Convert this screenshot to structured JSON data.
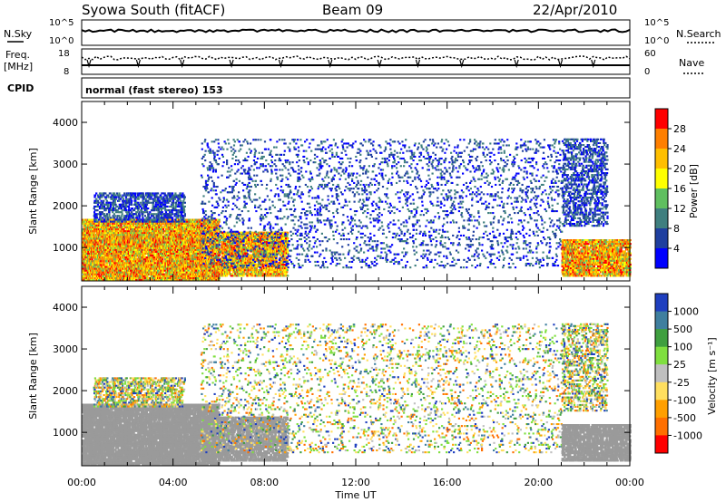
{
  "header": {
    "station": "Syowa South (fitACF)",
    "beam": "Beam 09",
    "date": "22/Apr/2010"
  },
  "nsky_panel": {
    "left_label": "N.Sky",
    "right_label": "N.Search",
    "left_ticks": [
      "10^5",
      "10^0"
    ],
    "right_ticks": [
      "10^5",
      "10^0"
    ]
  },
  "freq_panel": {
    "left_label_1": "Freq.",
    "left_label_2": "[MHz]",
    "right_label": "Nave",
    "left_ticks": [
      "18",
      "8"
    ],
    "right_ticks": [
      "60",
      "0"
    ]
  },
  "cpid": {
    "label": "CPID",
    "value": "normal (fast stereo) 153"
  },
  "time_axis": {
    "xlabel": "Time UT",
    "ticks": [
      "00:00",
      "04:00",
      "08:00",
      "12:00",
      "16:00",
      "20:00",
      "00:00"
    ]
  },
  "colors": {
    "power_scale": [
      "#0000ff",
      "#1f3f9f",
      "#3f7f7f",
      "#5fbf5f",
      "#ffff00",
      "#ffbf00",
      "#ff7f00",
      "#ff0000"
    ],
    "velocity_scale": [
      "#ff0000",
      "#ff6f00",
      "#ff9f00",
      "#ffdf5f",
      "#bfbfbf",
      "#7fdf3f",
      "#3f9f3f",
      "#3f7f9f",
      "#1f3fbf"
    ],
    "ground_scatter": "#9a9a9a"
  },
  "chart_data": [
    {
      "type": "heatmap",
      "name": "power_panel",
      "ylabel": "Slant Range [km]",
      "xlabel": "",
      "ylim": [
        200,
        4500
      ],
      "yticks": [
        "1000",
        "2000",
        "3000",
        "4000"
      ],
      "xticks": [
        "00:00",
        "04:00",
        "08:00",
        "12:00",
        "16:00",
        "20:00",
        "00:00"
      ],
      "colorbar_label": "Power [dB]",
      "colorbar_ticks": [
        "4",
        "8",
        "12",
        "16",
        "20",
        "24",
        "28"
      ],
      "seed": 11
    },
    {
      "type": "heatmap",
      "name": "velocity_panel",
      "ylabel": "Slant Range [km]",
      "xlabel": "Time UT",
      "ylim": [
        200,
        4500
      ],
      "yticks": [
        "1000",
        "2000",
        "3000",
        "4000"
      ],
      "xticks": [
        "00:00",
        "04:00",
        "08:00",
        "12:00",
        "16:00",
        "20:00",
        "00:00"
      ],
      "colorbar_label": "Velocity [m s⁻¹]",
      "colorbar_ticks": [
        "1000",
        "500",
        "100",
        "25",
        "-25",
        "-100",
        "-500",
        "-1000"
      ],
      "seed": 29
    }
  ]
}
